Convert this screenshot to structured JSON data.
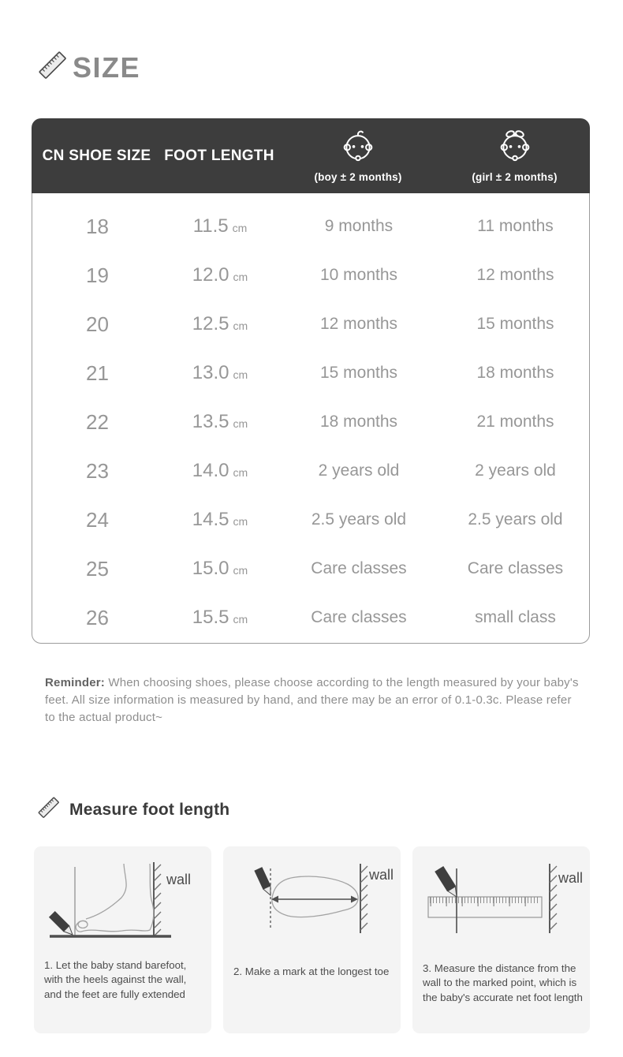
{
  "size_section": {
    "title": "SIZE",
    "table": {
      "header": {
        "col_size": "CN SHOE SIZE",
        "col_foot": "FOOT LENGTH",
        "boy_note": "(boy ± 2 months)",
        "girl_note": "(girl ± 2 months)"
      },
      "unit": "cm",
      "rows": [
        {
          "size": "18",
          "foot_length": "11.5",
          "boy": "9 months",
          "girl": "11 months"
        },
        {
          "size": "19",
          "foot_length": "12.0",
          "boy": "10 months",
          "girl": "12 months"
        },
        {
          "size": "20",
          "foot_length": "12.5",
          "boy": "12 months",
          "girl": "15 months"
        },
        {
          "size": "21",
          "foot_length": "13.0",
          "boy": "15 months",
          "girl": "18 months"
        },
        {
          "size": "22",
          "foot_length": "13.5",
          "boy": "18 months",
          "girl": "21 months"
        },
        {
          "size": "23",
          "foot_length": "14.0",
          "boy": "2 years old",
          "girl": "2 years old"
        },
        {
          "size": "24",
          "foot_length": "14.5",
          "boy": "2.5 years old",
          "girl": "2.5 years old"
        },
        {
          "size": "25",
          "foot_length": "15.0",
          "boy": "Care classes",
          "girl": "Care classes"
        },
        {
          "size": "26",
          "foot_length": "15.5",
          "boy": "Care classes",
          "girl": "small class"
        }
      ]
    },
    "reminder_label": "Reminder:",
    "reminder_text": "When choosing shoes, please choose according to the length measured by your baby's feet. All size information is measured by hand, and there may be an error of 0.1-0.3c. Please refer to the actual product~"
  },
  "measure_section": {
    "title": "Measure foot length",
    "steps": [
      {
        "wall_label": "wall",
        "caption": "1. Let the baby stand barefoot, with the heels against the wall, and the feet are fully extended"
      },
      {
        "wall_label": "wall",
        "caption": "2. Make a mark at the longest toe"
      },
      {
        "wall_label": "wall",
        "caption": "3. Measure the distance from the wall to the marked point, which is the baby's accurate net foot length"
      }
    ]
  },
  "colors": {
    "table_header_bg": "#3d3d3d",
    "table_header_text": "#ffffff",
    "table_body_text": "#979797",
    "title_gray": "#8a8a8a",
    "dark_text": "#3a3a3a",
    "card_bg": "#f4f4f4",
    "table_border": "#9c9c9c"
  }
}
